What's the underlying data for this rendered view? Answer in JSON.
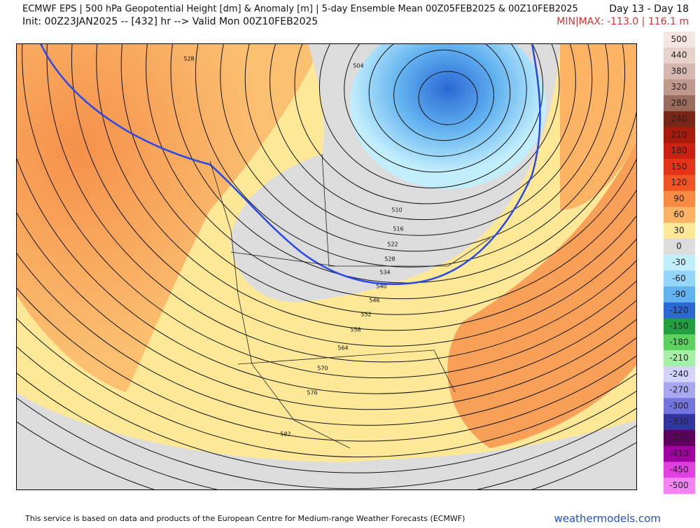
{
  "header": {
    "title": "ECMWF EPS | 500 hPa Geopotential Height [dm] & Anomaly [m] | 5-day Ensemble Mean 00Z05FEB2025 & 00Z10FEB2025",
    "init": "Init: 00Z23JAN2025 -- [432] hr --> Valid Mon 00Z10FEB2025",
    "days": "Day 13 - Day 18",
    "minmax": "MIN|MAX: -113.0 | 116.1 m"
  },
  "colorbar": {
    "labels": [
      500,
      440,
      380,
      320,
      280,
      240,
      210,
      180,
      150,
      120,
      90,
      60,
      30,
      0,
      -30,
      -60,
      -90,
      -120,
      -150,
      -180,
      -210,
      -240,
      -270,
      -300,
      -330,
      -370,
      -410,
      -450,
      -500
    ],
    "colors": [
      "#f6e6e2",
      "#e8d2cc",
      "#d6b8b0",
      "#bf9a8c",
      "#9a6c5e",
      "#7a2616",
      "#a81a0a",
      "#cc2010",
      "#e43418",
      "#f25424",
      "#f98a44",
      "#fcb464",
      "#fde898",
      "#dcdcdc",
      "#c2eefc",
      "#94d6fa",
      "#62b2f0",
      "#2a68d4",
      "#22a040",
      "#5ed25e",
      "#a4f0a4",
      "#d2d2fa",
      "#a8a8f0",
      "#7474de",
      "#3434a0",
      "#5e005e",
      "#a000a0",
      "#e040e0",
      "#f482f4"
    ]
  },
  "contours": [
    "528",
    "504",
    "510",
    "516",
    "522",
    "528",
    "534",
    "540",
    "546",
    "552",
    "558",
    "564",
    "570",
    "576",
    "582"
  ],
  "footer": {
    "notice": "This service is based on data and products of the European Centre for Medium-range Weather Forecasts (ECMWF)",
    "brand": "weathermodels.com"
  }
}
